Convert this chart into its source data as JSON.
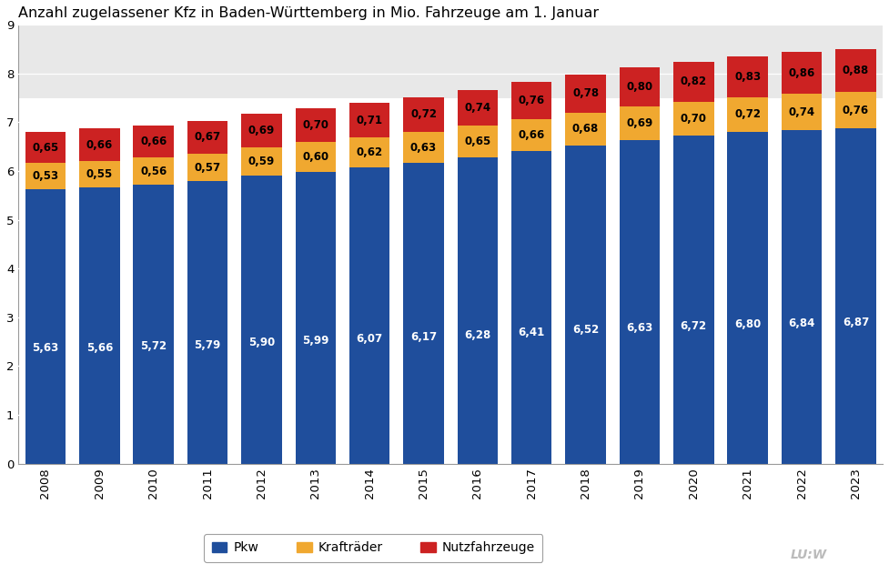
{
  "title": "Anzahl zugelassener Kfz in Baden-Württemberg in Mio. Fahrzeuge am 1. Januar",
  "years": [
    2008,
    2009,
    2010,
    2011,
    2012,
    2013,
    2014,
    2015,
    2016,
    2017,
    2018,
    2019,
    2020,
    2021,
    2022,
    2023
  ],
  "pkw": [
    5.63,
    5.66,
    5.72,
    5.79,
    5.9,
    5.99,
    6.07,
    6.17,
    6.28,
    6.41,
    6.52,
    6.63,
    6.72,
    6.8,
    6.84,
    6.87
  ],
  "kraft": [
    0.53,
    0.55,
    0.56,
    0.57,
    0.59,
    0.6,
    0.62,
    0.63,
    0.65,
    0.66,
    0.68,
    0.69,
    0.7,
    0.72,
    0.74,
    0.76
  ],
  "nutz": [
    0.65,
    0.66,
    0.66,
    0.67,
    0.69,
    0.7,
    0.71,
    0.72,
    0.74,
    0.76,
    0.78,
    0.8,
    0.82,
    0.83,
    0.86,
    0.88
  ],
  "pkw_color": "#1f4e9c",
  "kraft_color": "#f0a830",
  "nutz_color": "#cc2222",
  "bar_width": 0.75,
  "ylim": [
    0,
    9
  ],
  "yticks": [
    0,
    1,
    2,
    3,
    4,
    5,
    6,
    7,
    8,
    9
  ],
  "legend_labels": [
    "Pkw",
    "Krafträder",
    "Nutzfahrzeuge"
  ],
  "background_color": "#ffffff",
  "plot_bg_top": "#e8e8e8",
  "plot_bg_bottom": "#ffffff",
  "title_fontsize": 11.5,
  "tick_fontsize": 9.5,
  "label_fontsize": 8.5,
  "legend_fontsize": 10,
  "watermark": "LU:W"
}
